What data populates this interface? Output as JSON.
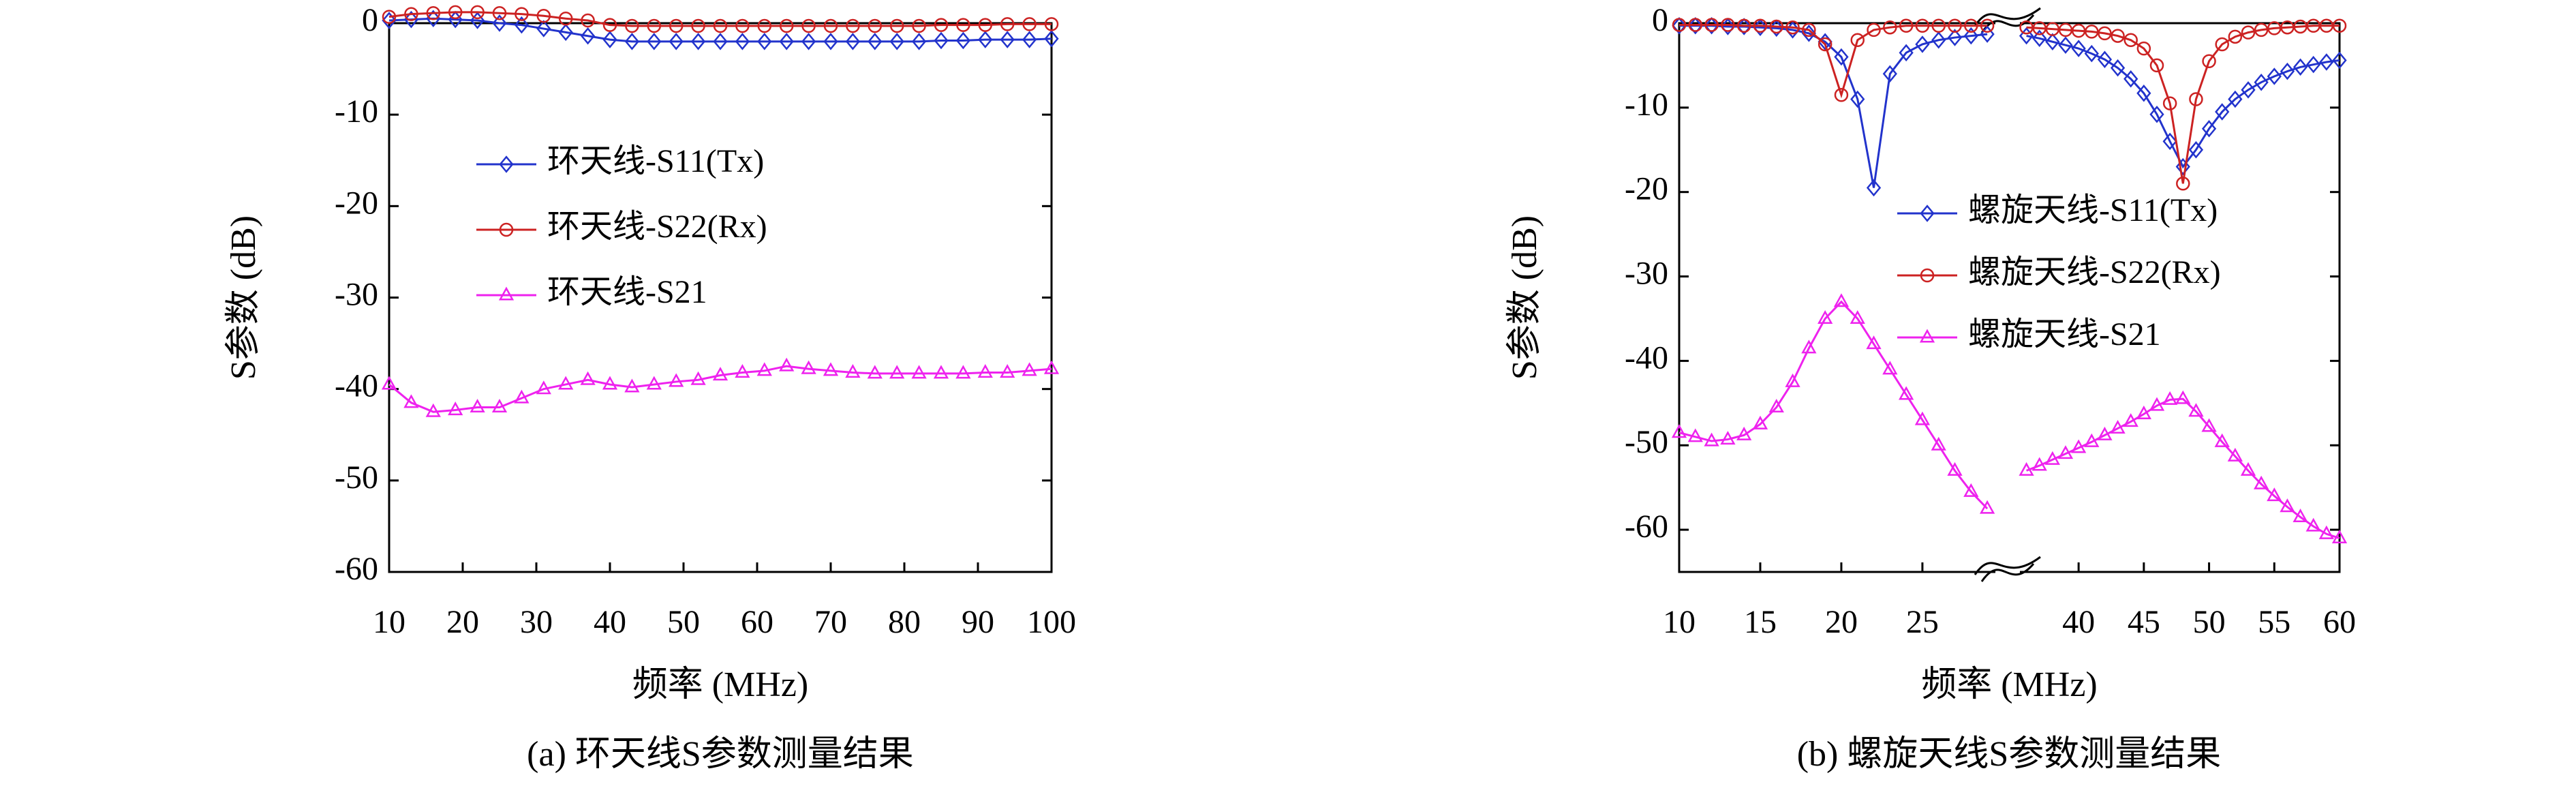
{
  "chart_data": [
    {
      "type": "line",
      "xlabel": "频率 (MHz)",
      "ylabel": "S参数 (dB)",
      "caption": "(a) 环天线S参数测量结果",
      "x": [
        10,
        13,
        16,
        19,
        22,
        25,
        28,
        31,
        34,
        37,
        40,
        43,
        46,
        49,
        52,
        55,
        58,
        61,
        64,
        67,
        70,
        73,
        76,
        79,
        82,
        85,
        88,
        91,
        94,
        97,
        100
      ],
      "xlim": [
        10,
        100
      ],
      "xticks": [
        10,
        20,
        30,
        40,
        50,
        60,
        70,
        80,
        90,
        100
      ],
      "ylim": [
        -60,
        0
      ],
      "yticks": [
        0,
        -10,
        -20,
        -30,
        -40,
        -50,
        -60
      ],
      "series": [
        {
          "name": "环天线-S11(Tx)",
          "color": "#2233cc",
          "marker": "diamond",
          "values": [
            0.3,
            0.4,
            0.5,
            0.4,
            0.3,
            0,
            -0.2,
            -0.6,
            -1,
            -1.4,
            -1.8,
            -2,
            -2,
            -2,
            -2,
            -2,
            -2,
            -2,
            -2,
            -2,
            -2,
            -2,
            -2,
            -2,
            -2,
            -1.9,
            -1.9,
            -1.8,
            -1.8,
            -1.8,
            -1.7
          ]
        },
        {
          "name": "环天线-S22(Rx)",
          "color": "#cc2222",
          "marker": "circle",
          "values": [
            0.7,
            1,
            1.1,
            1.2,
            1.2,
            1.1,
            1,
            0.8,
            0.5,
            0.3,
            -0.2,
            -0.3,
            -0.3,
            -0.3,
            -0.3,
            -0.3,
            -0.3,
            -0.3,
            -0.3,
            -0.3,
            -0.3,
            -0.3,
            -0.3,
            -0.3,
            -0.3,
            -0.2,
            -0.2,
            -0.2,
            -0.1,
            -0.1,
            -0.1
          ]
        },
        {
          "name": "环天线-S21",
          "color": "#ee22ee",
          "marker": "triangle",
          "values": [
            -39.5,
            -41.5,
            -42.5,
            -42.3,
            -42,
            -42,
            -41,
            -40,
            -39.5,
            -39,
            -39.5,
            -39.8,
            -39.5,
            -39.2,
            -39,
            -38.5,
            -38.2,
            -38,
            -37.5,
            -37.8,
            -38,
            -38.2,
            -38.3,
            -38.3,
            -38.3,
            -38.3,
            -38.3,
            -38.2,
            -38.2,
            -38,
            -37.8
          ]
        }
      ]
    },
    {
      "type": "line",
      "xlabel": "频率 (MHz)",
      "ylabel": "S参数 (dB)",
      "caption": "(b) 螺旋天线S参数测量结果",
      "x": [
        10,
        11,
        12,
        13,
        14,
        15,
        16,
        17,
        18,
        19,
        20,
        21,
        22,
        23,
        24,
        25,
        26,
        27,
        28,
        29,
        36,
        37,
        38,
        39,
        40,
        41,
        42,
        43,
        44,
        45,
        46,
        47,
        48,
        49,
        50,
        51,
        52,
        53,
        54,
        55,
        56,
        57,
        58,
        59,
        60
      ],
      "xlim": [
        10,
        60
      ],
      "x_break": [
        29.5,
        35.5
      ],
      "xticks": [
        10,
        15,
        20,
        25,
        40,
        45,
        50,
        55,
        60
      ],
      "ylim": [
        -65,
        0
      ],
      "yticks": [
        0,
        -10,
        -20,
        -30,
        -40,
        -50,
        -60
      ],
      "series": [
        {
          "name": "螺旋天线-S11(Tx)",
          "color": "#2233cc",
          "marker": "diamond",
          "values": [
            -0.3,
            -0.3,
            -0.3,
            -0.4,
            -0.4,
            -0.5,
            -0.6,
            -0.8,
            -1.2,
            -2.2,
            -4,
            -9,
            -19.5,
            -6,
            -3.5,
            -2.5,
            -2,
            -1.7,
            -1.5,
            -1.3,
            -1.5,
            -1.8,
            -2.2,
            -2.6,
            -3,
            -3.6,
            -4.3,
            -5.3,
            -6.6,
            -8.3,
            -10.8,
            -14,
            -17,
            -15,
            -12.5,
            -10.5,
            -9,
            -7.9,
            -7,
            -6.3,
            -5.7,
            -5.2,
            -4.9,
            -4.6,
            -4.4
          ]
        },
        {
          "name": "螺旋天线-S22(Rx)",
          "color": "#cc2222",
          "marker": "circle",
          "values": [
            -0.2,
            -0.2,
            -0.2,
            -0.2,
            -0.3,
            -0.3,
            -0.4,
            -0.5,
            -0.8,
            -2.5,
            -8.5,
            -2,
            -0.8,
            -0.5,
            -0.3,
            -0.3,
            -0.3,
            -0.3,
            -0.3,
            -0.3,
            -0.5,
            -0.6,
            -0.7,
            -0.8,
            -0.9,
            -1,
            -1.2,
            -1.5,
            -2,
            -3,
            -5,
            -9.5,
            -19,
            -9,
            -4.5,
            -2.5,
            -1.6,
            -1.1,
            -0.8,
            -0.6,
            -0.5,
            -0.4,
            -0.3,
            -0.3,
            -0.3
          ]
        },
        {
          "name": "螺旋天线-S21",
          "color": "#ee22ee",
          "marker": "triangle",
          "values": [
            -48.5,
            -49,
            -49.5,
            -49.3,
            -48.8,
            -47.5,
            -45.5,
            -42.5,
            -38.5,
            -35,
            -33,
            -35,
            -38,
            -41,
            -44,
            -47,
            -50,
            -53,
            -55.5,
            -57.5,
            -53,
            -52.4,
            -51.7,
            -51,
            -50.3,
            -49.6,
            -48.8,
            -48,
            -47.2,
            -46.3,
            -45.3,
            -44.6,
            -44.5,
            -46,
            -47.8,
            -49.6,
            -51.3,
            -53,
            -54.6,
            -56,
            -57.3,
            -58.5,
            -59.6,
            -60.5,
            -61
          ]
        }
      ]
    }
  ]
}
